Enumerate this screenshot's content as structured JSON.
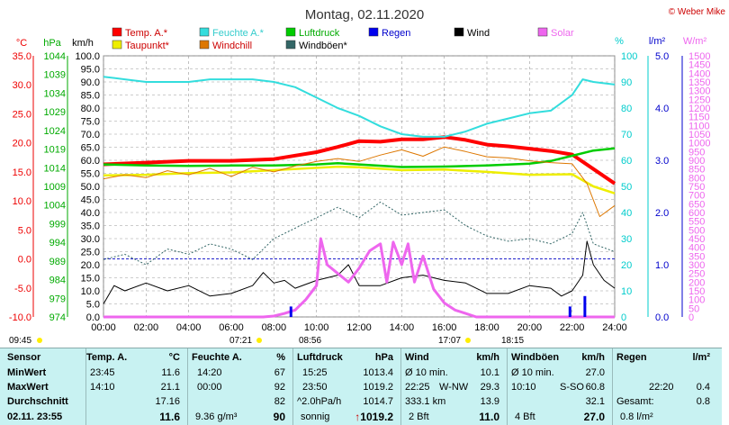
{
  "title": "Montag, 02.11.2020",
  "copyright": "© Weber Mike",
  "legend": [
    {
      "label": "Temp. A.*",
      "color": "#ff0000"
    },
    {
      "label": "Feuchte A.*",
      "color": "#33dddd"
    },
    {
      "label": "Luftdruck",
      "color": "#00cc00"
    },
    {
      "label": "Regen",
      "color": "#0000ee"
    },
    {
      "label": "Wind",
      "color": "#000000"
    },
    {
      "label": "Solar",
      "color": "#ee66ee"
    },
    {
      "label": "Taupunkt*",
      "color": "#eeee00"
    },
    {
      "label": "Windchill",
      "color": "#dd7700"
    },
    {
      "label": "Windböen*",
      "color": "#336666"
    }
  ],
  "axes": {
    "temp": {
      "unit": "°C",
      "ticks": [
        "35.0",
        "30.0",
        "25.0",
        "20.0",
        "15.0",
        "10.0",
        "5.0",
        "0.0",
        "-5.0",
        "-10.0"
      ],
      "color": "#ee0000"
    },
    "pressure": {
      "unit": "hPa",
      "ticks": [
        "1044",
        "1039",
        "1034",
        "1029",
        "1024",
        "1019",
        "1014",
        "1009",
        "1004",
        "999",
        "994",
        "989",
        "984",
        "979",
        "974"
      ],
      "color": "#00aa00"
    },
    "wind": {
      "unit": "km/h",
      "ticks": [
        "100.0",
        "95.0",
        "90.0",
        "85.0",
        "80.0",
        "75.0",
        "70.0",
        "65.0",
        "60.0",
        "55.0",
        "50.0",
        "45.0",
        "40.0",
        "35.0",
        "30.0",
        "25.0",
        "20.0",
        "15.0",
        "10.0",
        "5.0",
        "0.0"
      ],
      "color": "#000000"
    },
    "humidity": {
      "unit": "%",
      "ticks": [
        "100",
        "90",
        "80",
        "70",
        "60",
        "50",
        "40",
        "30",
        "20",
        "10",
        "0"
      ],
      "color": "#00cccc"
    },
    "rain": {
      "unit": "l/m²",
      "ticks": [
        "5.0",
        "4.0",
        "3.0",
        "2.0",
        "1.0",
        "0.0"
      ],
      "color": "#0000cc"
    },
    "solar": {
      "unit": "W/m²",
      "ticks": [
        "1500",
        "1450",
        "1400",
        "1350",
        "1300",
        "1250",
        "1200",
        "1150",
        "1100",
        "1050",
        "1000",
        "950",
        "900",
        "850",
        "800",
        "750",
        "700",
        "650",
        "600",
        "550",
        "500",
        "450",
        "400",
        "350",
        "300",
        "250",
        "200",
        "150",
        "100",
        "50",
        "0"
      ],
      "color": "#ee66ee"
    },
    "time_ticks": [
      "00:00",
      "02:00",
      "04:00",
      "06:00",
      "08:00",
      "10:00",
      "12:00",
      "14:00",
      "16:00",
      "18:00",
      "20:00",
      "22:00",
      "24:00"
    ]
  },
  "sun_marks": {
    "moonrise": "09:45",
    "sunrise": "07:21",
    "noon_a": "08:56",
    "sunset": "17:07",
    "noon_b": "18:15"
  },
  "chart_data": {
    "type": "line",
    "x_unit": "hours",
    "series": [
      {
        "name": "Temp. A.*",
        "axis": "temp",
        "color": "#ff0000",
        "points": [
          [
            0,
            16.3
          ],
          [
            2,
            16.6
          ],
          [
            4,
            16.9
          ],
          [
            6,
            16.9
          ],
          [
            8,
            17.2
          ],
          [
            9,
            17.8
          ],
          [
            10,
            18.4
          ],
          [
            11,
            19.3
          ],
          [
            12,
            20.3
          ],
          [
            13,
            20.2
          ],
          [
            14,
            20.6
          ],
          [
            15,
            20.6
          ],
          [
            16,
            21.0
          ],
          [
            17,
            20.5
          ],
          [
            18,
            19.7
          ],
          [
            19,
            19.4
          ],
          [
            20,
            19.0
          ],
          [
            21,
            18.6
          ],
          [
            22,
            18.0
          ],
          [
            23,
            15.5
          ],
          [
            24,
            13.0
          ]
        ]
      },
      {
        "name": "Feuchte A.*",
        "axis": "humidity",
        "color": "#33dddd",
        "points": [
          [
            0,
            92
          ],
          [
            1,
            91
          ],
          [
            2,
            90
          ],
          [
            3,
            90
          ],
          [
            4,
            90
          ],
          [
            5,
            91
          ],
          [
            6,
            91
          ],
          [
            7,
            91
          ],
          [
            8,
            90
          ],
          [
            9,
            88
          ],
          [
            10,
            84
          ],
          [
            11,
            80
          ],
          [
            12,
            77
          ],
          [
            13,
            73
          ],
          [
            14,
            70
          ],
          [
            15,
            69
          ],
          [
            16,
            69
          ],
          [
            17,
            71
          ],
          [
            18,
            74
          ],
          [
            19,
            76
          ],
          [
            20,
            78
          ],
          [
            21,
            79
          ],
          [
            22,
            85
          ],
          [
            22.5,
            91
          ],
          [
            23,
            90
          ],
          [
            24,
            89
          ]
        ]
      },
      {
        "name": "Luftdruck",
        "axis": "pressure",
        "color": "#00cc00",
        "points": [
          [
            0,
            1014.9
          ],
          [
            2,
            1014.6
          ],
          [
            4,
            1014.5
          ],
          [
            6,
            1014.6
          ],
          [
            8,
            1014.6
          ],
          [
            10,
            1014.9
          ],
          [
            11,
            1015.2
          ],
          [
            12,
            1014.9
          ],
          [
            14,
            1014.2
          ],
          [
            16,
            1014.3
          ],
          [
            18,
            1014.6
          ],
          [
            20,
            1015.1
          ],
          [
            21,
            1015.8
          ],
          [
            22,
            1017.2
          ],
          [
            23,
            1018.6
          ],
          [
            24,
            1019.2
          ]
        ]
      },
      {
        "name": "Taupunkt*",
        "axis": "temp",
        "color": "#eeee00",
        "points": [
          [
            0,
            14.4
          ],
          [
            2,
            14.5
          ],
          [
            4,
            14.8
          ],
          [
            6,
            14.9
          ],
          [
            8,
            15.3
          ],
          [
            10,
            15.7
          ],
          [
            11,
            15.9
          ],
          [
            12,
            15.8
          ],
          [
            14,
            15.3
          ],
          [
            16,
            15.4
          ],
          [
            18,
            15.0
          ],
          [
            20,
            14.5
          ],
          [
            22,
            14.6
          ],
          [
            23,
            12.5
          ],
          [
            24,
            11.3
          ]
        ]
      },
      {
        "name": "Windchill",
        "axis": "temp",
        "color": "#dd7700",
        "points": [
          [
            0,
            13.8
          ],
          [
            1,
            14.5
          ],
          [
            2,
            14.0
          ],
          [
            3,
            15.2
          ],
          [
            4,
            14.5
          ],
          [
            5,
            15.6
          ],
          [
            6,
            14.2
          ],
          [
            7,
            15.8
          ],
          [
            8,
            15.0
          ],
          [
            9,
            16.0
          ],
          [
            10,
            16.8
          ],
          [
            11,
            17.3
          ],
          [
            12,
            16.8
          ],
          [
            13,
            17.9
          ],
          [
            14,
            18.8
          ],
          [
            15,
            17.7
          ],
          [
            16,
            19.3
          ],
          [
            17,
            18.5
          ],
          [
            18,
            17.6
          ],
          [
            19,
            17.4
          ],
          [
            20,
            16.9
          ],
          [
            21,
            16.6
          ],
          [
            22,
            16.4
          ],
          [
            22.7,
            13.0
          ],
          [
            23.3,
            7.3
          ],
          [
            24,
            9.2
          ]
        ]
      },
      {
        "name": "Windböen*",
        "axis": "wind",
        "color": "#336666",
        "points": [
          [
            0,
            22
          ],
          [
            1,
            24
          ],
          [
            2,
            20
          ],
          [
            3,
            26
          ],
          [
            4,
            24
          ],
          [
            5,
            28
          ],
          [
            6,
            26
          ],
          [
            7,
            22
          ],
          [
            8,
            30
          ],
          [
            9,
            34
          ],
          [
            10,
            38
          ],
          [
            11,
            42
          ],
          [
            12,
            38
          ],
          [
            13,
            44
          ],
          [
            14,
            39
          ],
          [
            15,
            40
          ],
          [
            16,
            41
          ],
          [
            17,
            35
          ],
          [
            18,
            31
          ],
          [
            19,
            29
          ],
          [
            20,
            30
          ],
          [
            21,
            28
          ],
          [
            22,
            32
          ],
          [
            22.5,
            40
          ],
          [
            23,
            28
          ],
          [
            24,
            25
          ]
        ]
      },
      {
        "name": "Wind",
        "axis": "wind",
        "color": "#000000",
        "points": [
          [
            0,
            5
          ],
          [
            0.5,
            12
          ],
          [
            1,
            10
          ],
          [
            2,
            13
          ],
          [
            3,
            10
          ],
          [
            4,
            12
          ],
          [
            5,
            8
          ],
          [
            6,
            9
          ],
          [
            7,
            12
          ],
          [
            7.5,
            17
          ],
          [
            8,
            13
          ],
          [
            8.5,
            14
          ],
          [
            9,
            11
          ],
          [
            10,
            14
          ],
          [
            11,
            16
          ],
          [
            11.5,
            20
          ],
          [
            12,
            12
          ],
          [
            13,
            12
          ],
          [
            14,
            15
          ],
          [
            15,
            16
          ],
          [
            16,
            14
          ],
          [
            17,
            13
          ],
          [
            18,
            9
          ],
          [
            19,
            9
          ],
          [
            20,
            12
          ],
          [
            21,
            11
          ],
          [
            21.5,
            8
          ],
          [
            22,
            10
          ],
          [
            22.5,
            16
          ],
          [
            22.7,
            29
          ],
          [
            23,
            20
          ],
          [
            23.5,
            14
          ],
          [
            24,
            11
          ]
        ]
      },
      {
        "name": "Solar",
        "axis": "solar",
        "color": "#ee66ee",
        "points": [
          [
            0,
            0
          ],
          [
            7.5,
            0
          ],
          [
            8,
            5
          ],
          [
            8.5,
            20
          ],
          [
            9,
            40
          ],
          [
            9.5,
            100
          ],
          [
            10,
            180
          ],
          [
            10.2,
            450
          ],
          [
            10.5,
            300
          ],
          [
            11,
            250
          ],
          [
            11.5,
            200
          ],
          [
            12,
            280
          ],
          [
            12.5,
            380
          ],
          [
            13,
            420
          ],
          [
            13.3,
            200
          ],
          [
            13.6,
            430
          ],
          [
            14,
            300
          ],
          [
            14.3,
            420
          ],
          [
            14.6,
            200
          ],
          [
            15,
            350
          ],
          [
            15.5,
            160
          ],
          [
            16,
            80
          ],
          [
            16.5,
            40
          ],
          [
            17,
            20
          ],
          [
            17.5,
            0
          ],
          [
            24,
            0
          ]
        ]
      }
    ],
    "rain_bars": [
      {
        "x": 8.8,
        "value": 0.2
      },
      {
        "x": 21.9,
        "value": 0.2
      },
      {
        "x": 22.6,
        "value": 0.4
      }
    ]
  },
  "table": {
    "row_labels": {
      "header": "Sensor",
      "min": "MinWert",
      "max": "MaxWert",
      "avg": "Durchschnitt",
      "now": "02.11. 23:55"
    },
    "temp": {
      "title": "Temp. A.",
      "unit": "°C",
      "min_time": "23:45",
      "min": "11.6",
      "max_time": "14:10",
      "max": "21.1",
      "avg": "17.16",
      "now": "11.6"
    },
    "hum": {
      "title": "Feuchte A.",
      "unit": "%",
      "min_time": "14:20",
      "min": "67",
      "max_time": "00:00",
      "max": "92",
      "avg": "82",
      "abs": "9.36 g/m³",
      "now": "90"
    },
    "press": {
      "title": "Luftdruck",
      "unit": "hPa",
      "min_time": "15:25",
      "min": "1013.4",
      "max_time": "23:50",
      "max": "1019.2",
      "trend": "^2.0hPa/h",
      "avg": "1014.7",
      "weather": "sonnig",
      "arrow": "↑",
      "now": "1019.2"
    },
    "wind": {
      "title": "Wind",
      "unit": "km/h",
      "avg_label": "Ø 10 min.",
      "avg10": "10.1",
      "max_time": "22:25",
      "dir": "W-NW",
      "max": "29.3",
      "dist": "333.1 km",
      "avg": "13.9",
      "bft": "2 Bft",
      "now": "11.0"
    },
    "gust": {
      "title": "Windböen",
      "unit": "km/h",
      "avg_label": "Ø 10 min.",
      "avg10": "27.0",
      "max_time": "10:10",
      "dir": "S-SO",
      "max": "60.8",
      "avg": "32.1",
      "bft": "4 Bft",
      "now": "27.0"
    },
    "rain": {
      "title": "Regen",
      "unit": "l/m²",
      "time": "22:20",
      "max": "0.4",
      "total_label": "Gesamt:",
      "total": "0.8",
      "now": "0.8 l/m²"
    }
  }
}
